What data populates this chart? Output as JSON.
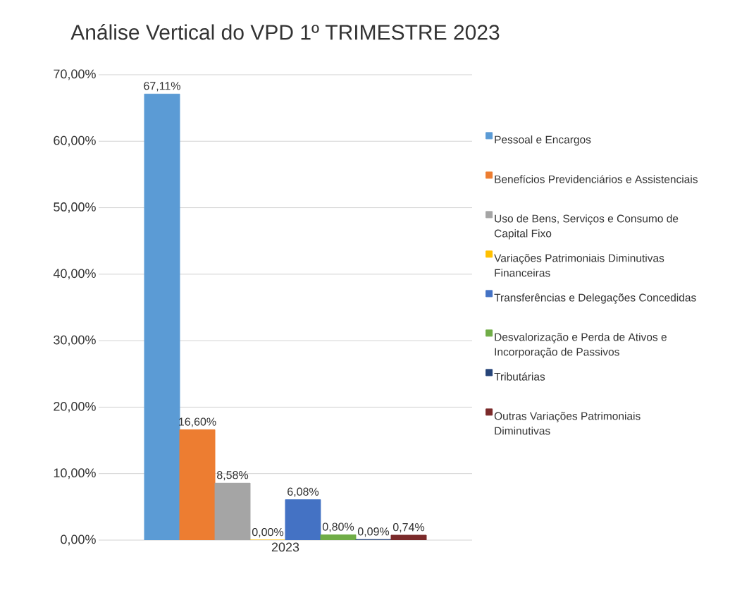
{
  "chart_data": {
    "type": "bar",
    "title": "Análise Vertical do VPD 1º TRIMESTRE 2023",
    "categories": [
      "2023"
    ],
    "series": [
      {
        "name": "Pessoal e Encargos",
        "color": "#5b9bd5",
        "values": [
          67.11
        ],
        "value_labels": [
          "67,11%"
        ]
      },
      {
        "name": "Benefícios Previdenciários e Assistenciais",
        "color": "#ed7d31",
        "values": [
          16.6
        ],
        "value_labels": [
          "16,60%"
        ]
      },
      {
        "name": "Uso de Bens, Serviços e Consumo de Capital Fixo",
        "color": "#a5a5a5",
        "values": [
          8.58
        ],
        "value_labels": [
          "8,58%"
        ]
      },
      {
        "name": "Variações Patrimoniais Diminutivas Financeiras",
        "color": "#ffc000",
        "values": [
          0.0
        ],
        "value_labels": [
          "0,00%"
        ]
      },
      {
        "name": "Transferências e Delegações Concedidas",
        "color": "#4472c4",
        "values": [
          6.08
        ],
        "value_labels": [
          "6,08%"
        ]
      },
      {
        "name": "Desvalorização e Perda de Ativos e Incorporação de Passivos",
        "color": "#70ad47",
        "values": [
          0.8
        ],
        "value_labels": [
          "0,80%"
        ]
      },
      {
        "name": "Tributárias",
        "color": "#264478",
        "values": [
          0.09
        ],
        "value_labels": [
          "0,09%"
        ]
      },
      {
        "name": "Outras Variações Patrimoniais Diminutivas",
        "color": "#7b2a2a",
        "values": [
          0.74
        ],
        "value_labels": [
          "0,74%"
        ]
      }
    ],
    "ylim": [
      0,
      70
    ],
    "yticks": [
      {
        "value": 0,
        "label": "0,00%"
      },
      {
        "value": 10,
        "label": "10,00%"
      },
      {
        "value": 20,
        "label": "20,00%"
      },
      {
        "value": 30,
        "label": "30,00%"
      },
      {
        "value": 40,
        "label": "40,00%"
      },
      {
        "value": 50,
        "label": "50,00%"
      },
      {
        "value": 60,
        "label": "60,00%"
      },
      {
        "value": 70,
        "label": "70,00%"
      }
    ],
    "grid": "y",
    "legend": "right"
  }
}
